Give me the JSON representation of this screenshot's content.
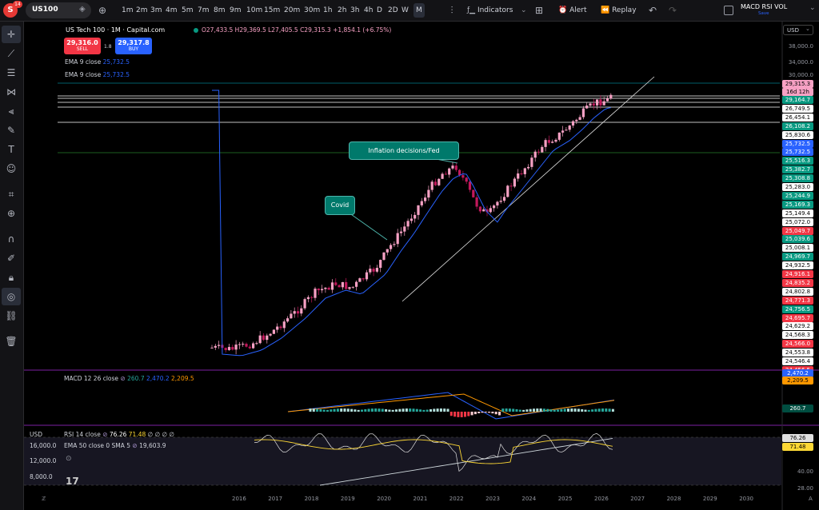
{
  "topbar": {
    "avatar": "S",
    "badge": "14",
    "symbol": "US100",
    "timeframes": [
      "1m",
      "2m",
      "3m",
      "4m",
      "5m",
      "7m",
      "8m",
      "9m",
      "10m",
      "15m",
      "20m",
      "30m",
      "1h",
      "2h",
      "3h",
      "4h",
      "D",
      "2D",
      "W",
      "M"
    ],
    "indicators": "Indicators",
    "alert": "Alert",
    "replay": "Replay",
    "layout_name": "MACD RSI VOL",
    "layout_status": "Save"
  },
  "legend": {
    "title": "US Tech 100 · 1M · Capital.com",
    "ohlc": "O27,433.5  H29,369.5  L27,405.5  C29,315.3  +1,854.1 (+6.75%)",
    "sell_price": "29,316.0",
    "sell_label": "SELL",
    "spread": "1.8",
    "buy_price": "29,317.8",
    "buy_label": "BUY",
    "ema1": "EMA 9 close",
    "ema1_val": "25,732.5",
    "ema2": "EMA 9 close",
    "ema2_val": "25,732.5"
  },
  "annotations": {
    "inflation": "Inflation decisions/Fed",
    "covid": "Covid"
  },
  "price_axis": {
    "currency": "USD",
    "ticks": [
      "38,000.0",
      "34,000.0",
      "30,000.0"
    ],
    "current": "29,315.3",
    "countdown": "16d 12h",
    "levels": [
      {
        "v": "29,164.7",
        "bg": "#089981",
        "fg": "#fff"
      },
      {
        "v": "26,749.5",
        "bg": "#ffffff",
        "fg": "#000"
      },
      {
        "v": "26,454.1",
        "bg": "#ffffff",
        "fg": "#000"
      },
      {
        "v": "26,108.2",
        "bg": "#089981",
        "fg": "#fff"
      },
      {
        "v": "25,830.6",
        "bg": "#ffffff",
        "fg": "#000"
      },
      {
        "v": "25,732.5",
        "bg": "#2962ff",
        "fg": "#fff"
      },
      {
        "v": "25,732.5",
        "bg": "#2962ff",
        "fg": "#fff"
      },
      {
        "v": "25,516.3",
        "bg": "#089981",
        "fg": "#fff"
      },
      {
        "v": "25,382.7",
        "bg": "#089981",
        "fg": "#fff"
      },
      {
        "v": "25,308.8",
        "bg": "#089981",
        "fg": "#fff"
      },
      {
        "v": "25,283.0",
        "bg": "#ffffff",
        "fg": "#000"
      },
      {
        "v": "25,244.9",
        "bg": "#089981",
        "fg": "#fff"
      },
      {
        "v": "25,169.3",
        "bg": "#089981",
        "fg": "#fff"
      },
      {
        "v": "25,149.4",
        "bg": "#ffffff",
        "fg": "#000"
      },
      {
        "v": "25,072.0",
        "bg": "#ffffff",
        "fg": "#000"
      },
      {
        "v": "25,049.7",
        "bg": "#f23645",
        "fg": "#fff"
      },
      {
        "v": "25,039.6",
        "bg": "#089981",
        "fg": "#fff"
      },
      {
        "v": "25,008.1",
        "bg": "#ffffff",
        "fg": "#000"
      },
      {
        "v": "24,969.7",
        "bg": "#089981",
        "fg": "#fff"
      },
      {
        "v": "24,932.5",
        "bg": "#ffffff",
        "fg": "#000"
      },
      {
        "v": "24,916.1",
        "bg": "#f23645",
        "fg": "#fff"
      },
      {
        "v": "24,835.2",
        "bg": "#f23645",
        "fg": "#fff"
      },
      {
        "v": "24,802.8",
        "bg": "#ffffff",
        "fg": "#000"
      },
      {
        "v": "24,771.3",
        "bg": "#f23645",
        "fg": "#fff"
      },
      {
        "v": "24,756.5",
        "bg": "#089981",
        "fg": "#fff"
      },
      {
        "v": "24,695.7",
        "bg": "#f23645",
        "fg": "#fff"
      },
      {
        "v": "24,629.2",
        "bg": "#ffffff",
        "fg": "#000"
      },
      {
        "v": "24,568.3",
        "bg": "#ffffff",
        "fg": "#000"
      },
      {
        "v": "24,566.0",
        "bg": "#f23645",
        "fg": "#fff"
      },
      {
        "v": "24,553.8",
        "bg": "#ffffff",
        "fg": "#000"
      },
      {
        "v": "24,546.4",
        "bg": "#ffffff",
        "fg": "#000"
      },
      {
        "v": "24,456.5",
        "bg": "#f23645",
        "fg": "#fff"
      }
    ]
  },
  "macd": {
    "label": "MACD 12 26 close",
    "v1": "260.7",
    "v2": "2,470.2",
    "v3": "2,209.5",
    "axis_hist": "260.7",
    "axis_sig": "2,209.5",
    "axis_macd": "2,470.2"
  },
  "rsi": {
    "label": "RSI 14 close",
    "v1": "76.26",
    "v2": "71.48",
    "rest": "∅ ∅ ∅ ∅",
    "ema_label": "EMA 50 close 0 SMA 5",
    "ema_val": "19,603.9",
    "axis_rsi": "76.26",
    "axis_ma": "71.48",
    "ticks": [
      "40.00",
      "28.00"
    ],
    "left_currency": "USD",
    "left_ticks": [
      "16,000.0",
      "12,000.0",
      "8,000.0"
    ]
  },
  "x_axis": [
    "2016",
    "2017",
    "2018",
    "2019",
    "2020",
    "2021",
    "2022",
    "2023",
    "2024",
    "2025",
    "2026",
    "2027",
    "2028",
    "2029",
    "2030"
  ],
  "colors": {
    "up": "#f7a1c4",
    "down": "#c2185b",
    "ema": "#2962ff"
  }
}
